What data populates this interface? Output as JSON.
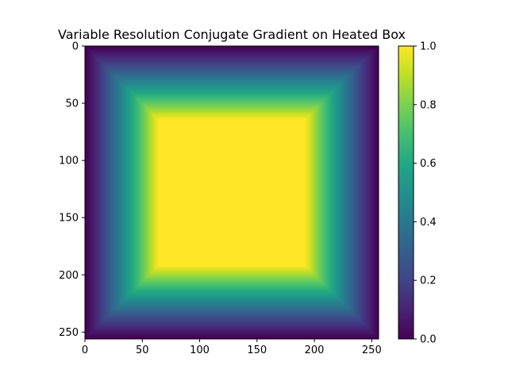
{
  "chart_data": {
    "type": "heatmap",
    "title": "Variable Resolution Conjugate Gradient on Heated Box",
    "xlabel": "",
    "ylabel": "",
    "grid_size": 256,
    "xlim": [
      0,
      256
    ],
    "ylim": [
      256,
      0
    ],
    "x_ticks": [
      "0",
      "50",
      "100",
      "150",
      "200",
      "250"
    ],
    "y_ticks": [
      "0",
      "50",
      "100",
      "150",
      "200",
      "250"
    ],
    "heated_region": {
      "x": [
        64,
        192
      ],
      "y": [
        64,
        192
      ],
      "value": 1.0
    },
    "boundary_value": 0.0,
    "value_range": [
      0.0,
      1.0
    ],
    "colormap": "viridis",
    "colorbar": {
      "ticks": [
        "0.0",
        "0.2",
        "0.4",
        "0.6",
        "0.8",
        "1.0"
      ],
      "tick_values": [
        0.0,
        0.2,
        0.4,
        0.6,
        0.8,
        1.0
      ]
    },
    "grid": false,
    "legend": "none"
  }
}
